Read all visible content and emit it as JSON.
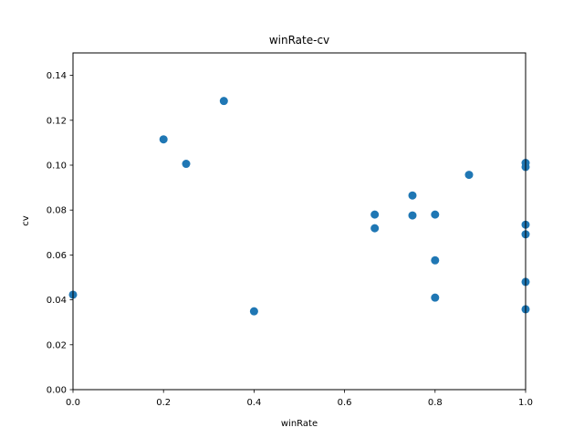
{
  "chart_data": {
    "type": "scatter",
    "title": "winRate-cv",
    "xlabel": "winRate",
    "ylabel": "cv",
    "xlim": [
      0.0,
      1.0
    ],
    "ylim": [
      0.0,
      0.15
    ],
    "grid": false,
    "marker_color": "#1f77b4",
    "xticks": [
      "0.0",
      "0.2",
      "0.4",
      "0.6",
      "0.8",
      "1.0"
    ],
    "yticks": [
      "0.00",
      "0.02",
      "0.04",
      "0.06",
      "0.08",
      "0.10",
      "0.12",
      "0.14"
    ],
    "points": [
      {
        "x": 0.0,
        "y": 0.0423
      },
      {
        "x": 0.2,
        "y": 0.1115
      },
      {
        "x": 0.25,
        "y": 0.1006
      },
      {
        "x": 0.3333,
        "y": 0.1286
      },
      {
        "x": 0.4,
        "y": 0.0349
      },
      {
        "x": 0.6667,
        "y": 0.078
      },
      {
        "x": 0.6667,
        "y": 0.0719
      },
      {
        "x": 0.75,
        "y": 0.0865
      },
      {
        "x": 0.75,
        "y": 0.0776
      },
      {
        "x": 0.8,
        "y": 0.078
      },
      {
        "x": 0.8,
        "y": 0.0576
      },
      {
        "x": 0.8,
        "y": 0.041
      },
      {
        "x": 0.875,
        "y": 0.0957
      },
      {
        "x": 1.0,
        "y": 0.101
      },
      {
        "x": 1.0,
        "y": 0.0992
      },
      {
        "x": 1.0,
        "y": 0.0735
      },
      {
        "x": 1.0,
        "y": 0.0692
      },
      {
        "x": 1.0,
        "y": 0.048
      },
      {
        "x": 1.0,
        "y": 0.0358
      }
    ]
  }
}
